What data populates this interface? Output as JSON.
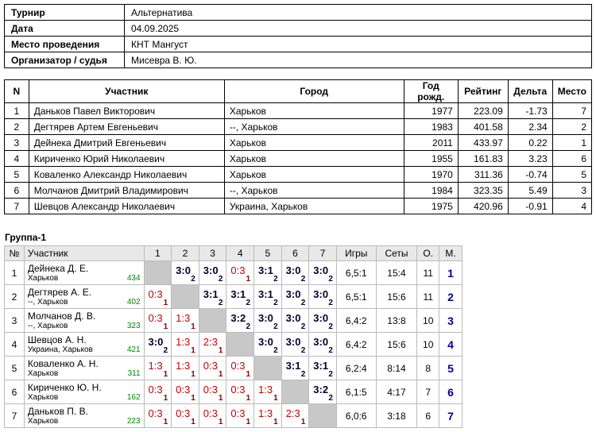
{
  "info": {
    "rows": [
      [
        "Турнир",
        "Альтернатива"
      ],
      [
        "Дата",
        "04.09.2025"
      ],
      [
        "Место проведения",
        "КНТ Мангуст"
      ],
      [
        "Организатор / судья",
        "Мисевра В. Ю."
      ]
    ]
  },
  "participants": {
    "headers": [
      "N",
      "Участник",
      "Город",
      "Год рожд.",
      "Рейтинг",
      "Дельта",
      "Место"
    ],
    "rows": [
      [
        "1",
        "Даньков Павел Викторович",
        "Харьков",
        "1977",
        "223.09",
        "-1.73",
        "7"
      ],
      [
        "2",
        "Дегтярев Артем Евгеньевич",
        "--, Харьков",
        "1983",
        "401.58",
        "2.34",
        "2"
      ],
      [
        "3",
        "Дейнека Дмитрий Евгеньевич",
        "Харьков",
        "2011",
        "433.97",
        "0.22",
        "1"
      ],
      [
        "4",
        "Кириченко Юрий Николаевич",
        "Харьков",
        "1955",
        "161.83",
        "3.23",
        "6"
      ],
      [
        "5",
        "Коваленко Александр Николаевич",
        "Харьков",
        "1970",
        "311.36",
        "-0.74",
        "5"
      ],
      [
        "6",
        "Молчанов Дмитрий Владимирович",
        "--, Харьков",
        "1984",
        "323.35",
        "5.49",
        "3"
      ],
      [
        "7",
        "Шевцов Александр Николаевич",
        "Украина, Харьков",
        "1975",
        "420.96",
        "-0.91",
        "4"
      ]
    ]
  },
  "group": {
    "title": "Группа-1",
    "headers": [
      "№",
      "Участник",
      "1",
      "2",
      "3",
      "4",
      "5",
      "6",
      "7",
      "Игры",
      "Сеты",
      "О.",
      "М."
    ],
    "rows": [
      {
        "n": "1",
        "name": "Дейнека Д. Е.",
        "city": "Харьков",
        "rating": "434",
        "results": [
          null,
          {
            "score": "3:0",
            "points": "2"
          },
          {
            "score": "3:0",
            "points": "2"
          },
          {
            "score": "0:3",
            "points": "1"
          },
          {
            "score": "3:1",
            "points": "2"
          },
          {
            "score": "3:0",
            "points": "2"
          },
          {
            "score": "3:0",
            "points": "2"
          }
        ],
        "games": "6,5:1",
        "sets": "15:4",
        "points": "11",
        "place": "1"
      },
      {
        "n": "2",
        "name": "Дегтярев А. Е.",
        "city": "--, Харьков",
        "rating": "402",
        "results": [
          {
            "score": "0:3",
            "points": "1"
          },
          null,
          {
            "score": "3:1",
            "points": "2"
          },
          {
            "score": "3:1",
            "points": "2"
          },
          {
            "score": "3:1",
            "points": "2"
          },
          {
            "score": "3:0",
            "points": "2"
          },
          {
            "score": "3:0",
            "points": "2"
          }
        ],
        "games": "6,5:1",
        "sets": "15:6",
        "points": "11",
        "place": "2"
      },
      {
        "n": "3",
        "name": "Молчанов Д. В.",
        "city": "--, Харьков",
        "rating": "323",
        "results": [
          {
            "score": "0:3",
            "points": "1"
          },
          {
            "score": "1:3",
            "points": "1"
          },
          null,
          {
            "score": "3:2",
            "points": "2"
          },
          {
            "score": "3:0",
            "points": "2"
          },
          {
            "score": "3:0",
            "points": "2"
          },
          {
            "score": "3:0",
            "points": "2"
          }
        ],
        "games": "6,4:2",
        "sets": "13:8",
        "points": "10",
        "place": "3"
      },
      {
        "n": "4",
        "name": "Шевцов А. Н.",
        "city": "Украина, Харьков",
        "rating": "421",
        "results": [
          {
            "score": "3:0",
            "points": "2"
          },
          {
            "score": "1:3",
            "points": "1"
          },
          {
            "score": "2:3",
            "points": "1"
          },
          null,
          {
            "score": "3:0",
            "points": "2"
          },
          {
            "score": "3:0",
            "points": "2"
          },
          {
            "score": "3:0",
            "points": "2"
          }
        ],
        "games": "6,4:2",
        "sets": "15:6",
        "points": "10",
        "place": "4"
      },
      {
        "n": "5",
        "name": "Коваленко А. Н.",
        "city": "Харьков",
        "rating": "311",
        "results": [
          {
            "score": "1:3",
            "points": "1"
          },
          {
            "score": "1:3",
            "points": "1"
          },
          {
            "score": "0:3",
            "points": "1"
          },
          {
            "score": "0:3",
            "points": "1"
          },
          null,
          {
            "score": "3:1",
            "points": "2"
          },
          {
            "score": "3:1",
            "points": "2"
          }
        ],
        "games": "6,2:4",
        "sets": "8:14",
        "points": "8",
        "place": "5"
      },
      {
        "n": "6",
        "name": "Кириченко Ю. Н.",
        "city": "Харьков",
        "rating": "162",
        "results": [
          {
            "score": "0:3",
            "points": "1"
          },
          {
            "score": "0:3",
            "points": "1"
          },
          {
            "score": "0:3",
            "points": "1"
          },
          {
            "score": "0:3",
            "points": "1"
          },
          {
            "score": "1:3",
            "points": "1"
          },
          null,
          {
            "score": "3:2",
            "points": "2"
          }
        ],
        "games": "6,1:5",
        "sets": "4:17",
        "points": "7",
        "place": "6"
      },
      {
        "n": "7",
        "name": "Даньков П. В.",
        "city": "Харьков",
        "rating": "223",
        "results": [
          {
            "score": "0:3",
            "points": "1"
          },
          {
            "score": "0:3",
            "points": "1"
          },
          {
            "score": "0:3",
            "points": "1"
          },
          {
            "score": "0:3",
            "points": "1"
          },
          {
            "score": "1:3",
            "points": "1"
          },
          {
            "score": "2:3",
            "points": "1"
          },
          null
        ],
        "games": "6,0:6",
        "sets": "3:18",
        "points": "6",
        "place": "7"
      }
    ]
  }
}
